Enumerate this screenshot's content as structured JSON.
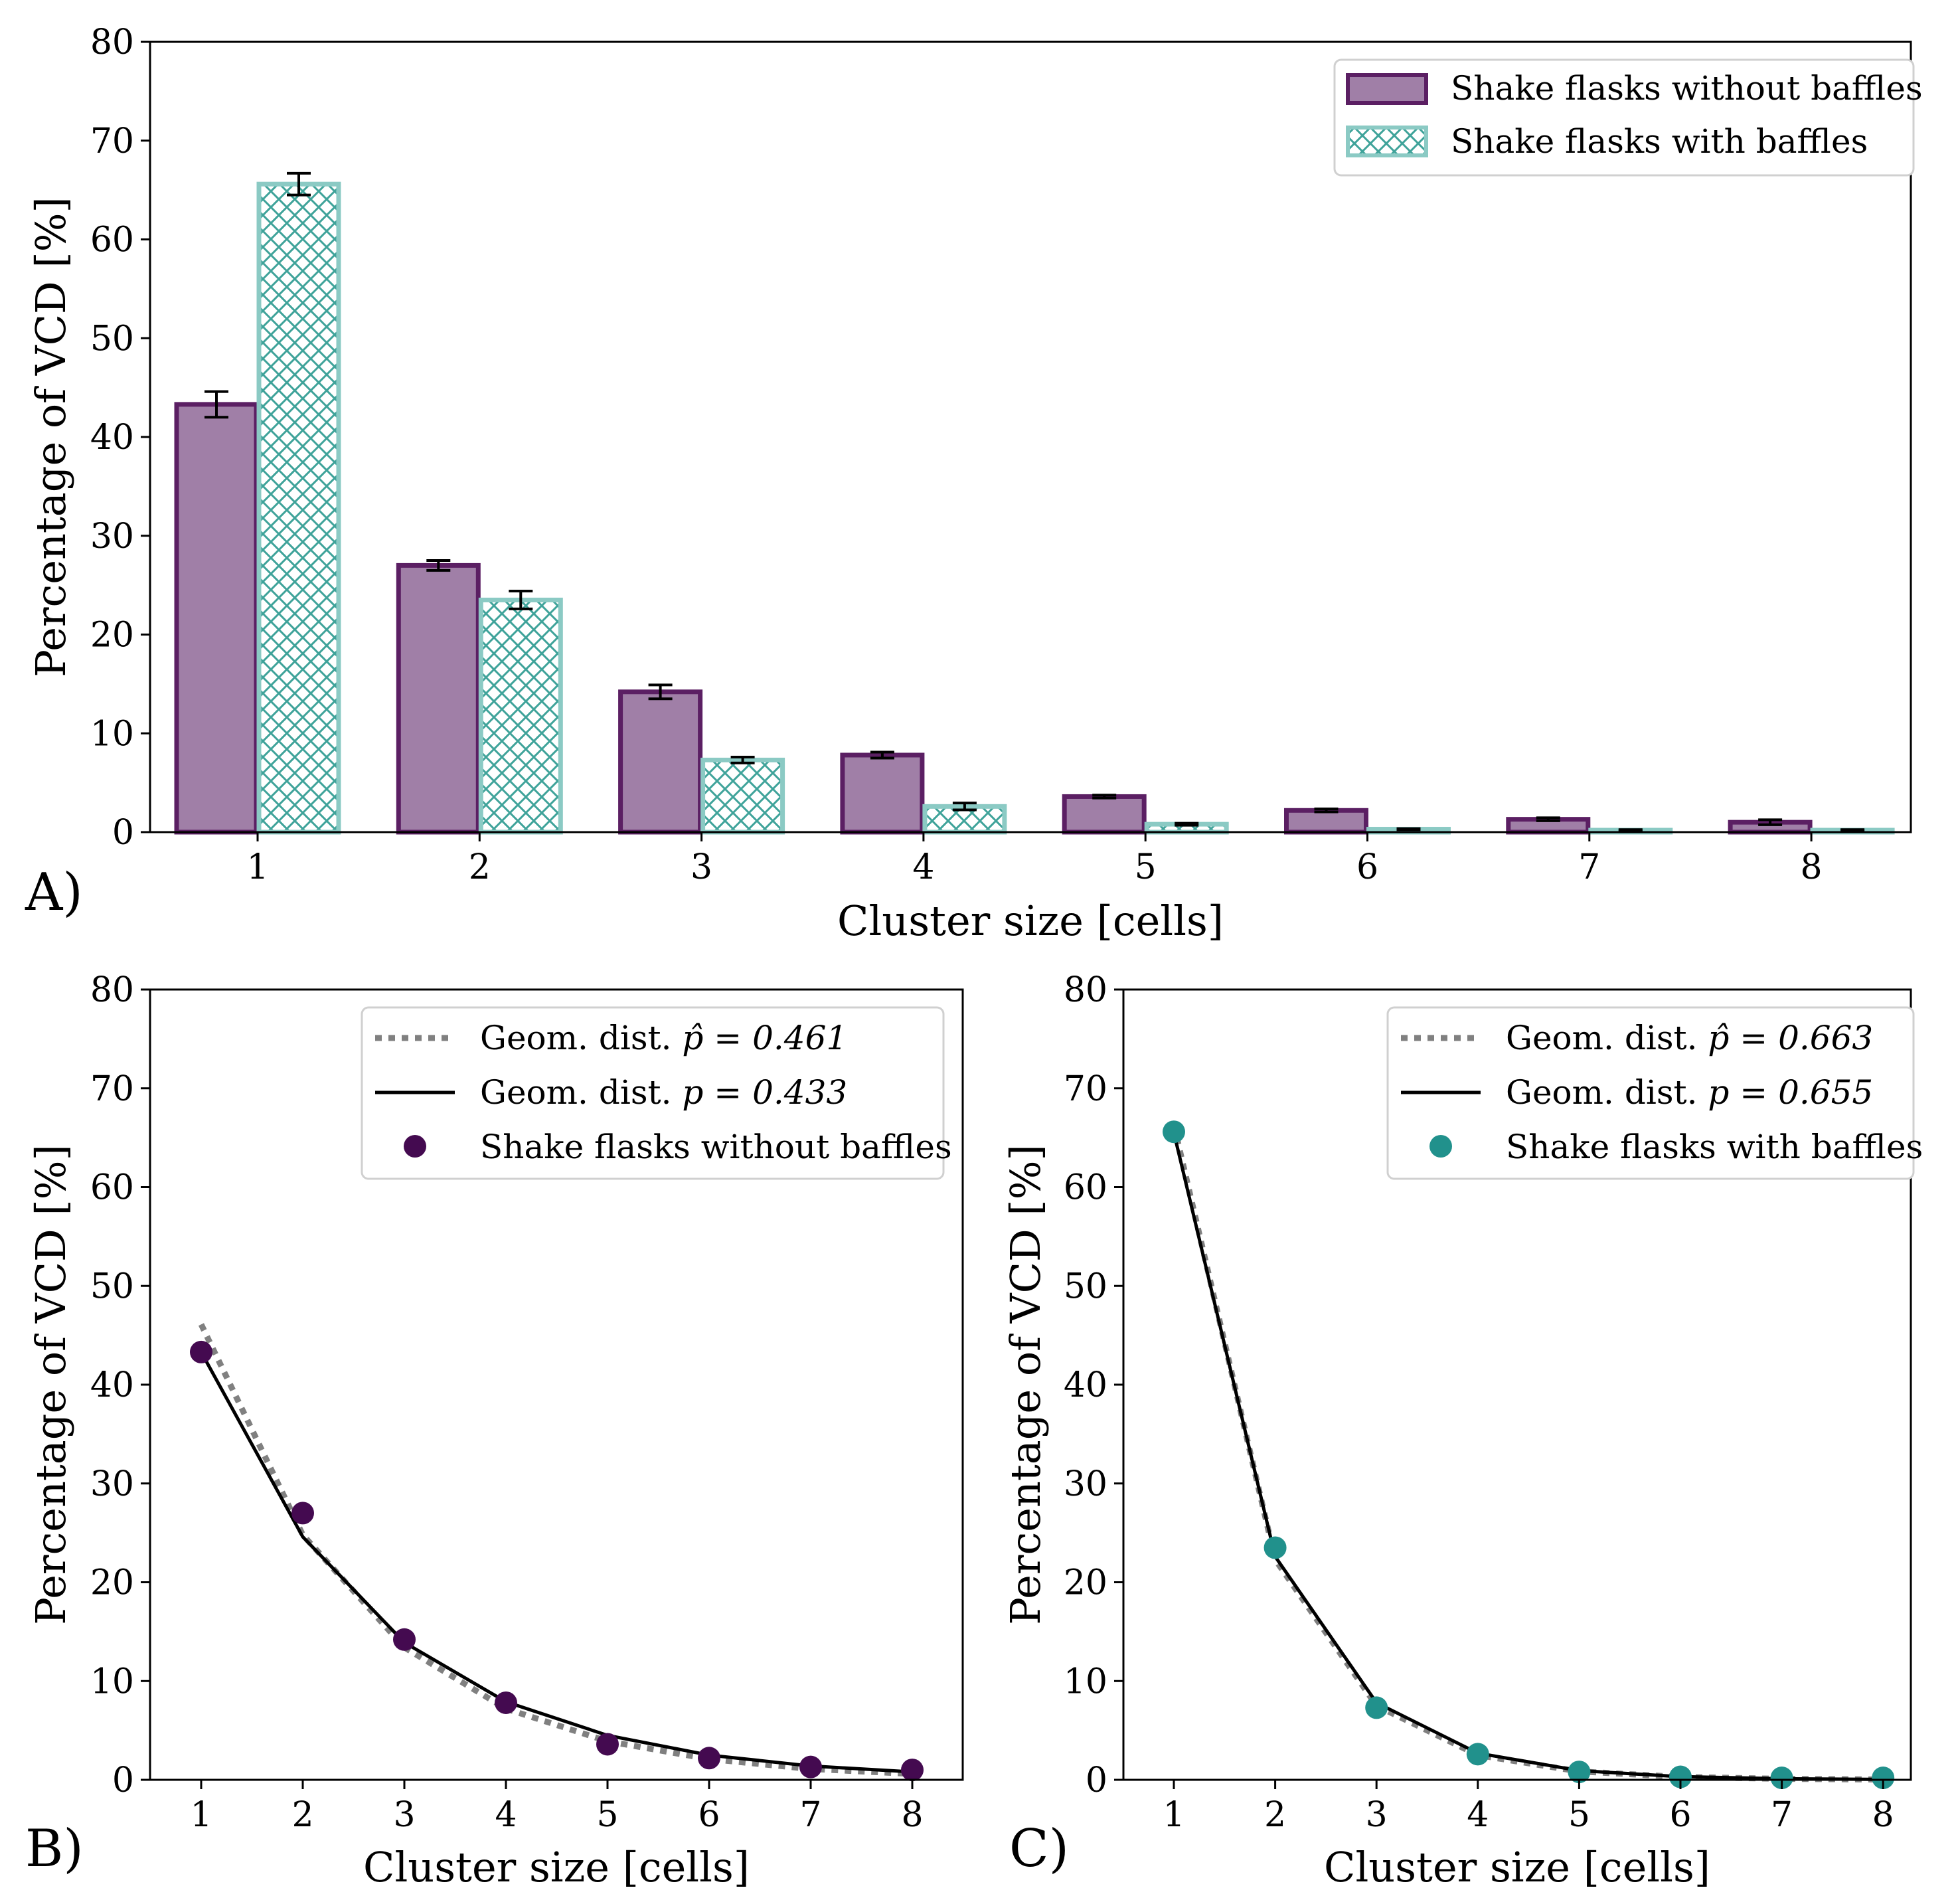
{
  "chart_data": [
    {
      "panel_label": "A)",
      "type": "bar",
      "categories": [
        "1",
        "2",
        "3",
        "4",
        "5",
        "6",
        "7",
        "8"
      ],
      "xlabel": "Cluster size [cells]",
      "ylabel": "Percentage of VCD [%]",
      "ylim": [
        0,
        80
      ],
      "yticks": [
        "0",
        "10",
        "20",
        "30",
        "40",
        "50",
        "60",
        "70",
        "80"
      ],
      "legend_position": "top-right",
      "series": [
        {
          "name": "Shake flasks without baffles",
          "color": "#5b1f63",
          "values": [
            43.3,
            27.0,
            14.2,
            7.8,
            3.6,
            2.2,
            1.3,
            1.0
          ],
          "errors": [
            1.3,
            0.5,
            0.7,
            0.3,
            0.15,
            0.15,
            0.15,
            0.25
          ]
        },
        {
          "name": "Shake flasks with baffles",
          "color": "#3fa39a",
          "hatch": "crosshatch",
          "values": [
            65.6,
            23.5,
            7.3,
            2.6,
            0.8,
            0.3,
            0.2,
            0.2
          ],
          "errors": [
            1.1,
            0.9,
            0.3,
            0.35,
            0.1,
            0.05,
            0.05,
            0.05
          ]
        }
      ]
    },
    {
      "panel_label": "B)",
      "type": "line",
      "x": [
        1,
        2,
        3,
        4,
        5,
        6,
        7,
        8
      ],
      "xlabel": "Cluster size [cells]",
      "ylabel": "Percentage of VCD [%]",
      "ylim": [
        0,
        80
      ],
      "yticks": [
        "0",
        "10",
        "20",
        "30",
        "40",
        "50",
        "60",
        "70",
        "80"
      ],
      "legend_position": "top-right",
      "series": [
        {
          "name": "Geom. dist.",
          "label_math": "p̂ = 0.461",
          "style": "dotted",
          "color": "#808080",
          "values": [
            46.1,
            24.8,
            13.4,
            7.2,
            3.9,
            2.1,
            1.1,
            0.6
          ]
        },
        {
          "name": "Geom. dist.",
          "label_math": "p = 0.433",
          "style": "solid",
          "color": "#000000",
          "values": [
            43.3,
            24.6,
            13.9,
            7.9,
            4.5,
            2.5,
            1.4,
            0.8
          ]
        },
        {
          "name": "Shake flasks without baffles",
          "style": "markers",
          "color": "#440a50",
          "values": [
            43.3,
            27.0,
            14.2,
            7.8,
            3.6,
            2.2,
            1.3,
            1.0
          ]
        }
      ]
    },
    {
      "panel_label": "C)",
      "type": "line",
      "x": [
        1,
        2,
        3,
        4,
        5,
        6,
        7,
        8
      ],
      "xlabel": "Cluster size [cells]",
      "ylabel": "Percentage of VCD [%]",
      "ylim": [
        0,
        80
      ],
      "yticks": [
        "0",
        "10",
        "20",
        "30",
        "40",
        "50",
        "60",
        "70",
        "80"
      ],
      "legend_position": "top-right",
      "series": [
        {
          "name": "Geom. dist.",
          "label_math": "p̂ = 0.663",
          "style": "dotted",
          "color": "#808080",
          "values": [
            66.3,
            22.3,
            7.5,
            2.5,
            0.85,
            0.29,
            0.1,
            0.03
          ]
        },
        {
          "name": "Geom. dist.",
          "label_math": "p = 0.655",
          "style": "solid",
          "color": "#000000",
          "values": [
            65.5,
            22.6,
            7.8,
            2.7,
            0.93,
            0.32,
            0.11,
            0.04
          ]
        },
        {
          "name": "Shake flasks with baffles",
          "style": "markers",
          "color": "#21918c",
          "values": [
            65.6,
            23.5,
            7.3,
            2.6,
            0.8,
            0.3,
            0.2,
            0.2
          ]
        }
      ]
    }
  ]
}
